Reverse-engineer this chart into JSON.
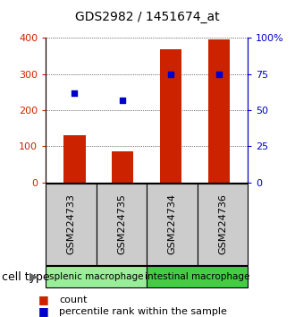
{
  "title": "GDS2982 / 1451674_at",
  "samples": [
    "GSM224733",
    "GSM224735",
    "GSM224734",
    "GSM224736"
  ],
  "counts": [
    130,
    85,
    370,
    395
  ],
  "percentiles": [
    62,
    57,
    75,
    75
  ],
  "left_ylim": [
    0,
    400
  ],
  "right_ylim": [
    0,
    100
  ],
  "left_yticks": [
    0,
    100,
    200,
    300,
    400
  ],
  "right_yticks": [
    0,
    25,
    50,
    75,
    100
  ],
  "right_yticklabels": [
    "0",
    "25",
    "50",
    "75",
    "100%"
  ],
  "bar_color": "#cc2200",
  "dot_color": "#0000cc",
  "groups": [
    {
      "label": "splenic macrophage",
      "samples": [
        0,
        1
      ],
      "color": "#99ee99"
    },
    {
      "label": "intestinal macrophage",
      "samples": [
        2,
        3
      ],
      "color": "#44cc44"
    }
  ],
  "group_box_colors": [
    "#99ee99",
    "#44cc44"
  ],
  "sample_box_color": "#cccccc",
  "grid_color": "#000000",
  "title_fontsize": 10,
  "tick_fontsize": 8,
  "legend_fontsize": 8,
  "cell_type_fontsize": 9,
  "sample_label_fontsize": 8,
  "group_label_fontsize": 7.5
}
